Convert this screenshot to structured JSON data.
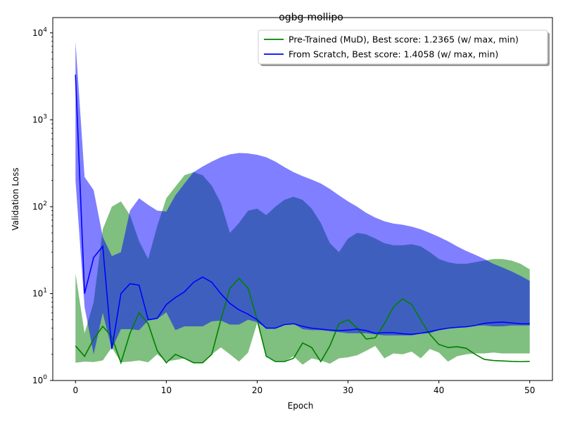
{
  "chart_data": {
    "type": "line",
    "title": "ogbg-mollipo",
    "xlabel": "Epoch",
    "ylabel": "Validation Loss",
    "xlim": [
      -2.5,
      52.5
    ],
    "ylim": [
      1,
      15000
    ],
    "yscale": "log",
    "x_ticks": [
      0,
      10,
      20,
      30,
      40,
      50
    ],
    "x_tick_labels": [
      "0",
      "10",
      "20",
      "30",
      "40",
      "50"
    ],
    "y_ticks": [
      1,
      10,
      100,
      1000,
      10000
    ],
    "y_tick_labels": [
      {
        "base": "10",
        "exp": "0"
      },
      {
        "base": "10",
        "exp": "1"
      },
      {
        "base": "10",
        "exp": "2"
      },
      {
        "base": "10",
        "exp": "3"
      },
      {
        "base": "10",
        "exp": "4"
      }
    ],
    "grid": false,
    "legend_position": "upper-right",
    "x": [
      0,
      1,
      2,
      3,
      4,
      5,
      6,
      7,
      8,
      9,
      10,
      11,
      12,
      13,
      14,
      15,
      16,
      17,
      18,
      19,
      20,
      21,
      22,
      23,
      24,
      25,
      26,
      27,
      28,
      29,
      30,
      31,
      32,
      33,
      34,
      35,
      36,
      37,
      38,
      39,
      40,
      41,
      42,
      43,
      44,
      45,
      46,
      47,
      48,
      49,
      50
    ],
    "series": [
      {
        "name": "Pre-Trained (MuD), Best score: 1.2365 (w/ max, min)",
        "color": "#008000",
        "band_color": "#008000",
        "band_opacity": 0.5,
        "mean": [
          2.5,
          1.9,
          3.0,
          4.2,
          3.2,
          1.6,
          3.5,
          6.0,
          4.5,
          2.2,
          1.6,
          2.0,
          1.8,
          1.6,
          1.6,
          2.0,
          5.0,
          11.5,
          15.0,
          11.5,
          5.0,
          1.9,
          1.65,
          1.65,
          1.8,
          2.7,
          2.4,
          1.65,
          2.5,
          4.5,
          5.0,
          4.0,
          3.0,
          3.1,
          4.5,
          7.0,
          8.7,
          7.5,
          5.0,
          3.4,
          2.6,
          2.4,
          2.45,
          2.35,
          2.0,
          1.75,
          1.7,
          1.68,
          1.66,
          1.65,
          1.66
        ],
        "max": [
          17,
          3.5,
          8.0,
          55,
          100,
          115,
          80,
          40,
          25,
          60,
          125,
          170,
          230,
          250,
          230,
          175,
          110,
          50,
          65,
          90,
          95,
          80,
          100,
          120,
          130,
          120,
          95,
          65,
          38,
          30,
          43,
          50,
          48,
          43,
          38,
          36,
          36,
          37,
          35,
          30,
          25,
          23,
          22,
          22,
          23,
          24,
          25,
          25,
          24,
          22,
          19
        ],
        "min": [
          1.6,
          1.65,
          1.63,
          1.7,
          2.4,
          1.62,
          1.65,
          1.7,
          1.62,
          2.0,
          1.66,
          1.72,
          1.8,
          1.6,
          1.6,
          2.0,
          2.4,
          2.0,
          1.65,
          2.1,
          4.6,
          1.9,
          1.65,
          1.65,
          1.9,
          1.52,
          1.8,
          1.7,
          1.56,
          1.8,
          1.85,
          1.95,
          2.2,
          2.5,
          1.8,
          2.05,
          2.0,
          2.15,
          1.8,
          2.3,
          2.1,
          1.65,
          1.9,
          2.0,
          2.05,
          2.05,
          2.1,
          2.05,
          2.05,
          2.05,
          2.05
        ]
      },
      {
        "name": "From Scratch, Best score: 1.4058 (w/ max, min)",
        "color": "#0000ff",
        "band_color": "#0000ff",
        "band_opacity": 0.5,
        "mean": [
          3300,
          10,
          26,
          35,
          2.3,
          10,
          13,
          12.5,
          5.0,
          5.2,
          7.5,
          9.0,
          10.5,
          13.5,
          15.5,
          13.5,
          10.0,
          7.7,
          6.5,
          5.8,
          5.0,
          4.0,
          4.0,
          4.4,
          4.5,
          4.2,
          4.0,
          3.9,
          3.8,
          3.75,
          3.8,
          3.9,
          3.75,
          3.5,
          3.55,
          3.55,
          3.45,
          3.4,
          3.5,
          3.65,
          3.85,
          4.0,
          4.1,
          4.15,
          4.3,
          4.55,
          4.65,
          4.7,
          4.6,
          4.5,
          4.5
        ],
        "max": [
          8000,
          220,
          155,
          45,
          27,
          30,
          90,
          125,
          105,
          90,
          88,
          135,
          185,
          250,
          290,
          330,
          370,
          400,
          415,
          410,
          395,
          370,
          330,
          285,
          250,
          225,
          205,
          185,
          160,
          135,
          115,
          100,
          85,
          75,
          68,
          64,
          62,
          59,
          55,
          50,
          45,
          40,
          35,
          31,
          28,
          25,
          22,
          20,
          18,
          16,
          14
        ],
        "min": [
          200,
          7,
          2.0,
          6.0,
          2.3,
          3.9,
          3.9,
          3.8,
          4.9,
          5.1,
          6.1,
          3.8,
          4.2,
          4.2,
          4.2,
          4.8,
          4.9,
          4.4,
          4.4,
          5.0,
          4.7,
          4.0,
          4.0,
          4.4,
          4.5,
          3.9,
          3.8,
          3.8,
          3.7,
          3.6,
          3.5,
          3.5,
          3.5,
          3.4,
          3.3,
          3.3,
          3.3,
          3.3,
          3.45,
          3.5,
          3.8,
          4.0,
          4.1,
          4.2,
          4.3,
          4.3,
          4.2,
          4.2,
          4.3,
          4.3,
          4.3
        ]
      }
    ]
  }
}
